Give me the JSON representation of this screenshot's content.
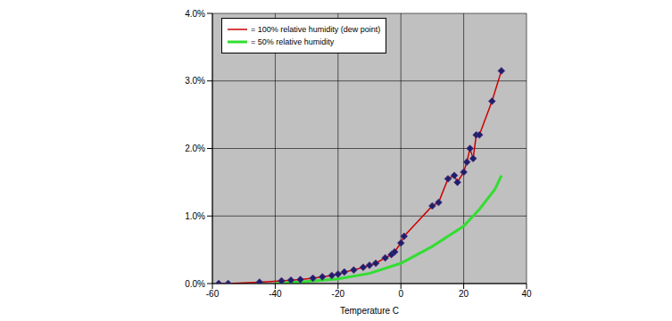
{
  "chart_data": {
    "type": "line",
    "xlabel": "Temperature C",
    "xlim": [
      -60,
      40
    ],
    "xticks": [
      -60,
      -40,
      -20,
      0,
      20,
      40
    ],
    "ylim": [
      0,
      4
    ],
    "yticks": [
      {
        "value": 0,
        "label": "0.0%"
      },
      {
        "value": 1,
        "label": "1.0%"
      },
      {
        "value": 2,
        "label": "2.0%"
      },
      {
        "value": 3,
        "label": "3.0%"
      },
      {
        "value": 4,
        "label": "4.0%"
      }
    ],
    "grid": true,
    "legend": "upper left",
    "series": [
      {
        "name": "= 100% relative humidity (dew point)",
        "color": "#cc0000",
        "marker": "diamond",
        "x": [
          -58,
          -55,
          -45,
          -38,
          -35,
          -32,
          -28,
          -25,
          -22,
          -20,
          -18,
          -15,
          -12,
          -10,
          -8,
          -5,
          -3,
          -2,
          0,
          1,
          10,
          12,
          15,
          17,
          18,
          20,
          21,
          22,
          23,
          24,
          25,
          29,
          32
        ],
        "values": [
          0.0,
          0.0,
          0.02,
          0.04,
          0.05,
          0.06,
          0.08,
          0.1,
          0.12,
          0.14,
          0.17,
          0.2,
          0.24,
          0.27,
          0.3,
          0.38,
          0.43,
          0.47,
          0.6,
          0.7,
          1.15,
          1.2,
          1.55,
          1.6,
          1.5,
          1.65,
          1.8,
          2.0,
          1.85,
          2.2,
          2.2,
          2.7,
          3.15
        ]
      },
      {
        "name": "= 50% relative humidity",
        "color": "#33dd33",
        "marker": "none",
        "x": [
          -40,
          -30,
          -20,
          -10,
          0,
          10,
          20,
          25,
          30,
          32
        ],
        "values": [
          0.0,
          0.03,
          0.07,
          0.15,
          0.3,
          0.55,
          0.85,
          1.1,
          1.4,
          1.6
        ]
      }
    ]
  }
}
